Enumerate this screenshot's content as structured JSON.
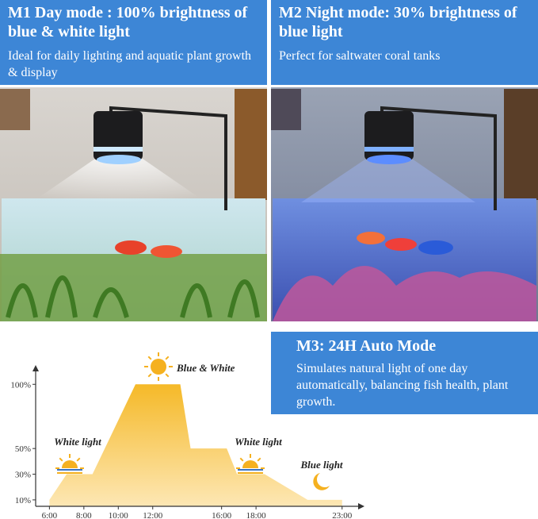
{
  "panels": [
    {
      "title": "M1 Day mode : 100% brightness of blue & white light",
      "text": "Ideal for daily lighting and aquatic plant growth & display"
    },
    {
      "title": "M2 Night mode: 30% brightness of blue light",
      "text": "Perfect for saltwater coral tanks"
    },
    {
      "title": "M3: 24H Auto Mode",
      "text": "Simulates natural light of one day automatically, balancing fish health, plant growth."
    }
  ],
  "chart_data": {
    "type": "area",
    "color": "#f7c23f",
    "x": [
      6,
      7,
      8.5,
      11,
      13.6,
      14.2,
      16.3,
      16.9,
      18.5,
      21,
      23
    ],
    "values": [
      10,
      30,
      30,
      100,
      100,
      50,
      50,
      30,
      30,
      10,
      10
    ],
    "xlim": [
      5.2,
      24.3
    ],
    "ylim": [
      5,
      115
    ],
    "xticks": [
      {
        "value": 6,
        "label": "6:00"
      },
      {
        "value": 8,
        "label": "8:00"
      },
      {
        "value": 10,
        "label": "10:00"
      },
      {
        "value": 12,
        "label": "12:00"
      },
      {
        "value": 16,
        "label": "16:00"
      },
      {
        "value": 18,
        "label": "18:00"
      },
      {
        "value": 23,
        "label": "23:00"
      }
    ],
    "yticks": [
      {
        "value": 10,
        "label": "10%"
      },
      {
        "value": 30,
        "label": "30%"
      },
      {
        "value": 50,
        "label": "50%"
      },
      {
        "value": 100,
        "label": "100%"
      }
    ],
    "annotations": [
      "Blue & White",
      "White light",
      "White light",
      "Blue light"
    ]
  }
}
